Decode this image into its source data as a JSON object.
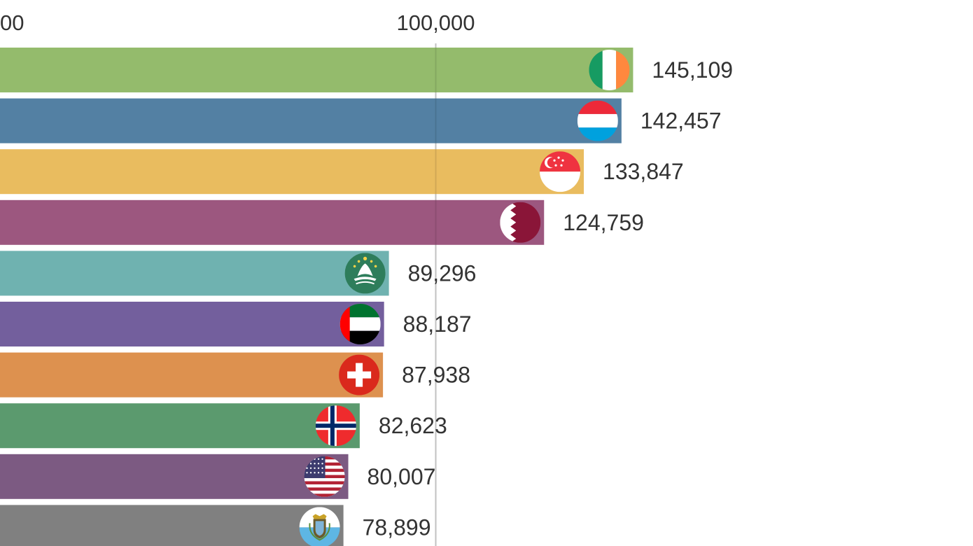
{
  "chart_data": {
    "type": "bar",
    "orientation": "horizontal",
    "title": "",
    "xlabel": "",
    "ylabel": "",
    "x_ticks": [
      {
        "value": 0,
        "label": "00"
      },
      {
        "value": 100000,
        "label": "100,000"
      }
    ],
    "grid": true,
    "categories": [
      "Ireland",
      "Luxembourg",
      "Singapore",
      "Qatar",
      "Macao",
      "United Arab Emirates",
      "Switzerland",
      "Norway",
      "United States",
      "San Marino"
    ],
    "values": [
      145109,
      142457,
      133847,
      124759,
      89296,
      88187,
      87938,
      82623,
      80007,
      78899
    ],
    "value_labels": [
      "145,109",
      "142,457",
      "133,847",
      "124,759",
      "89,296",
      "88,187",
      "87,938",
      "82,623",
      "80,007",
      "78,899"
    ],
    "colors": [
      "#94bb6c",
      "#5380a3",
      "#e9bc5f",
      "#9c577f",
      "#6fb2b0",
      "#735f9d",
      "#dd914f",
      "#5b9a6e",
      "#7c5a82",
      "#808080"
    ],
    "flag_icons": [
      "ireland-flag-icon",
      "luxembourg-flag-icon",
      "singapore-flag-icon",
      "qatar-flag-icon",
      "macao-flag-icon",
      "uae-flag-icon",
      "switzerland-flag-icon",
      "norway-flag-icon",
      "usa-flag-icon",
      "san-marino-flag-icon"
    ]
  }
}
